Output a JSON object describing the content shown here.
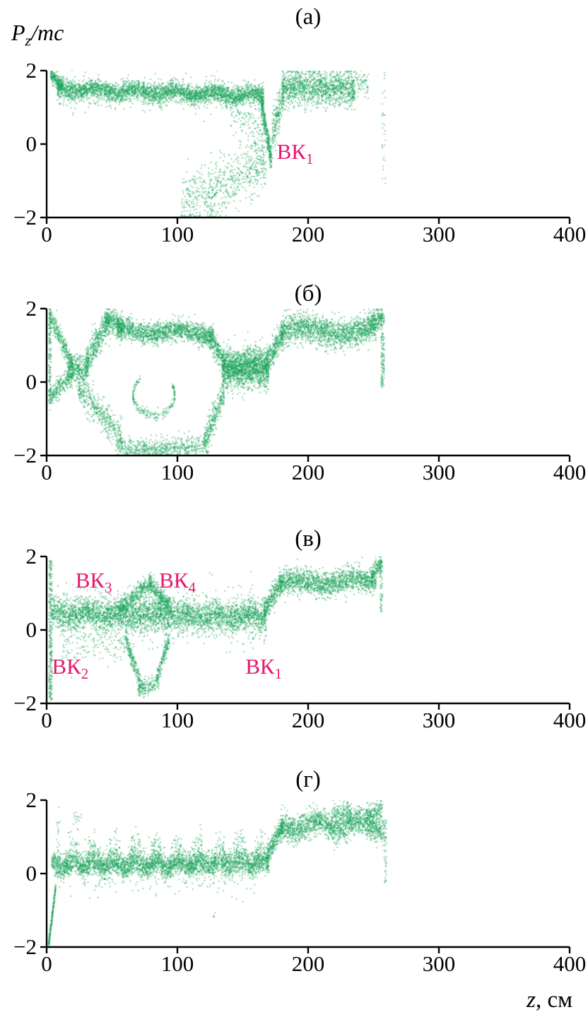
{
  "chart_data": {
    "type": "scatter",
    "ylabel": "Pz/mc",
    "ylabel_parts": {
      "base": "P",
      "sub": "z",
      "rest": "/mc"
    },
    "xlabel": "z, см",
    "xlabel_parts": {
      "base": "z",
      "rest": ", см"
    },
    "xlim": [
      0,
      400
    ],
    "ylim": [
      -2,
      2
    ],
    "xticks": [
      {
        "v": 0,
        "label": "0"
      },
      {
        "v": 100,
        "label": "100"
      },
      {
        "v": 200,
        "label": "200"
      },
      {
        "v": 300,
        "label": "300"
      },
      {
        "v": 400,
        "label": "400"
      }
    ],
    "yticks": [
      {
        "v": 2,
        "label": "2"
      },
      {
        "v": 0,
        "label": "0"
      },
      {
        "v": -2,
        "label": "−2"
      }
    ],
    "point_color": "#17a258",
    "annotation_color": "#e8186e",
    "axis_color": "#000000",
    "panels": [
      {
        "title": "(а)",
        "annotations": [
          {
            "base": "ВК",
            "sub": "1",
            "x": 176,
            "y": -0.3
          }
        ],
        "series": [
          {
            "t": "band",
            "x0": 3,
            "x1": 12,
            "y0": 1.9,
            "y1": 1.55,
            "s": 0.1,
            "n": 200
          },
          {
            "t": "band",
            "x0": 8,
            "x1": 166,
            "y0": 1.5,
            "y1": 1.32,
            "s": 0.12,
            "n": 2800,
            "w": 0.06,
            "p": 30
          },
          {
            "t": "band",
            "x0": 8,
            "x1": 166,
            "y0": 1.45,
            "y1": 1.3,
            "s": 0.22,
            "n": 700,
            "w": 0.06,
            "p": 30
          },
          {
            "t": "band",
            "x0": 140,
            "x1": 167,
            "y0": 0.9,
            "y1": 0.2,
            "s": 0.3,
            "n": 120
          },
          {
            "t": "band",
            "x0": 164,
            "x1": 172,
            "y0": 1.15,
            "y1": -0.45,
            "s": 0.18,
            "n": 350
          },
          {
            "t": "band",
            "x0": 103,
            "x1": 168,
            "y0": -1.75,
            "y1": -0.45,
            "s": 0.4,
            "n": 650,
            "ymin": -2,
            "ymax": 0.1
          },
          {
            "t": "band",
            "x0": 172,
            "x1": 182,
            "y0": 0.2,
            "y1": 1.5,
            "s": 0.25,
            "n": 220
          },
          {
            "t": "band",
            "x0": 180,
            "x1": 236,
            "y0": 1.55,
            "y1": 1.5,
            "s": 0.24,
            "n": 1300,
            "ymax": 2
          },
          {
            "t": "band",
            "x0": 236,
            "x1": 246,
            "y0": 1.6,
            "y1": 1.7,
            "s": 0.18,
            "n": 60
          },
          {
            "t": "vline",
            "x": 258,
            "y0": -1.3,
            "y1": 1.95,
            "n": 30,
            "j": 3
          }
        ]
      },
      {
        "title": "(б)",
        "annotations": [],
        "series": [
          {
            "t": "vline",
            "x": 2.5,
            "y0": -0.6,
            "y1": 2,
            "n": 150,
            "j": 2
          },
          {
            "t": "band",
            "x0": 2,
            "x1": 20,
            "y0": 1.85,
            "y1": 0.45,
            "s": 0.14,
            "n": 300
          },
          {
            "t": "band",
            "x0": 2,
            "x1": 20,
            "y0": -0.45,
            "y1": 0.25,
            "s": 0.14,
            "n": 250
          },
          {
            "t": "band",
            "x0": 16,
            "x1": 32,
            "y0": 0.3,
            "y1": 0.45,
            "s": 0.22,
            "n": 350
          },
          {
            "t": "band",
            "x0": 30,
            "x1": 48,
            "y0": 0.5,
            "y1": 1.7,
            "s": 0.2,
            "n": 400
          },
          {
            "t": "band",
            "x0": 44,
            "x1": 58,
            "y0": 1.75,
            "y1": 1.5,
            "s": 0.18,
            "n": 300,
            "ymax": 2
          },
          {
            "t": "band",
            "x0": 54,
            "x1": 128,
            "y0": 1.4,
            "y1": 1.32,
            "s": 0.14,
            "n": 1500,
            "w": 0.08,
            "p": 45
          },
          {
            "t": "band",
            "x0": 124,
            "x1": 137,
            "y0": 1.25,
            "y1": 0.5,
            "s": 0.16,
            "n": 280
          },
          {
            "t": "band",
            "x0": 24,
            "x1": 58,
            "y0": -0.1,
            "y1": -1.6,
            "s": 0.22,
            "n": 450
          },
          {
            "t": "band",
            "x0": 54,
            "x1": 124,
            "y0": -1.8,
            "y1": -1.78,
            "s": 0.14,
            "n": 600,
            "ymin": -2
          },
          {
            "t": "band",
            "x0": 120,
            "x1": 136,
            "y0": -1.65,
            "y1": -0.3,
            "s": 0.18,
            "n": 300
          },
          {
            "t": "arc",
            "cx": 82,
            "cy": -0.35,
            "rx": 16,
            "ry": 0.55,
            "a0": -230,
            "a1": 30,
            "s": 0.06,
            "n": 220
          },
          {
            "t": "band",
            "x0": 134,
            "x1": 170,
            "y0": 0.35,
            "y1": 0.38,
            "s": 0.26,
            "n": 1700
          },
          {
            "t": "band",
            "x0": 168,
            "x1": 181,
            "y0": 0.5,
            "y1": 1.35,
            "s": 0.18,
            "n": 320
          },
          {
            "t": "band",
            "x0": 179,
            "x1": 252,
            "y0": 1.38,
            "y1": 1.42,
            "s": 0.2,
            "n": 1600,
            "w": 0.1,
            "p": 60,
            "ymax": 2
          },
          {
            "t": "band",
            "x0": 248,
            "x1": 257,
            "y0": 1.55,
            "y1": 1.85,
            "s": 0.14,
            "n": 160
          },
          {
            "t": "vline",
            "x": 257,
            "y0": -0.15,
            "y1": 1.9,
            "n": 140,
            "j": 2.5
          }
        ]
      },
      {
        "title": "(в)",
        "annotations": [
          {
            "base": "ВК",
            "sub": "3",
            "x": 22,
            "y": 1.25
          },
          {
            "base": "ВК",
            "sub": "4",
            "x": 86,
            "y": 1.25
          },
          {
            "base": "ВК",
            "sub": "2",
            "x": 4,
            "y": -1.1
          },
          {
            "base": "ВК",
            "sub": "1",
            "x": 152,
            "y": -1.1
          }
        ],
        "series": [
          {
            "t": "vline",
            "x": 3,
            "y0": -1.95,
            "y1": 1.9,
            "n": 280,
            "j": 2.5
          },
          {
            "t": "band",
            "x0": 4,
            "x1": 168,
            "y0": 0.45,
            "y1": 0.35,
            "s": 0.2,
            "n": 3300,
            "w": 0.05,
            "p": 25
          },
          {
            "t": "band",
            "x0": 4,
            "x1": 168,
            "y0": 0.4,
            "y1": 0.35,
            "s": 0.38,
            "n": 700
          },
          {
            "t": "band",
            "x0": 12,
            "x1": 60,
            "y0": -0.35,
            "y1": -0.3,
            "s": 0.3,
            "n": 140,
            "ymax": 0.1
          },
          {
            "t": "band",
            "x0": 56,
            "x1": 80,
            "y0": 0.6,
            "y1": 1.28,
            "s": 0.13,
            "n": 380
          },
          {
            "t": "band",
            "x0": 78,
            "x1": 96,
            "y0": 1.28,
            "y1": 0.55,
            "s": 0.13,
            "n": 330
          },
          {
            "t": "band",
            "x0": 60,
            "x1": 72,
            "y0": -0.2,
            "y1": -1.5,
            "s": 0.14,
            "n": 220
          },
          {
            "t": "band",
            "x0": 70,
            "x1": 86,
            "y0": -1.6,
            "y1": -1.45,
            "s": 0.12,
            "n": 160
          },
          {
            "t": "band",
            "x0": 84,
            "x1": 94,
            "y0": -1.35,
            "y1": -0.2,
            "s": 0.13,
            "n": 170
          },
          {
            "t": "band",
            "x0": 166,
            "x1": 180,
            "y0": 0.5,
            "y1": 1.3,
            "s": 0.16,
            "n": 320
          },
          {
            "t": "band",
            "x0": 178,
            "x1": 252,
            "y0": 1.28,
            "y1": 1.33,
            "s": 0.17,
            "n": 1500,
            "w": 0.07,
            "p": 45
          },
          {
            "t": "band",
            "x0": 248,
            "x1": 256,
            "y0": 1.45,
            "y1": 1.85,
            "s": 0.13,
            "n": 140
          },
          {
            "t": "vline",
            "x": 256,
            "y0": 0.5,
            "y1": 1.9,
            "n": 60,
            "j": 2
          }
        ]
      },
      {
        "title": "(г)",
        "annotations": [],
        "series": [
          {
            "t": "band",
            "x0": 1.5,
            "x1": 7,
            "y0": -1.95,
            "y1": -0.35,
            "s": 0.07,
            "n": 220
          },
          {
            "t": "vline",
            "x": 9,
            "y0": 0.3,
            "y1": 1.9,
            "n": 18,
            "j": 3
          },
          {
            "t": "band",
            "x0": 20,
            "x1": 27,
            "y0": 1.45,
            "y1": 1.55,
            "s": 0.12,
            "n": 16
          },
          {
            "t": "band",
            "x0": 4,
            "x1": 170,
            "y0": 0.22,
            "y1": 0.28,
            "s": 0.16,
            "n": 3200,
            "w": 0.07,
            "p": 16
          },
          {
            "t": "band",
            "x0": 12,
            "x1": 168,
            "y0": 0.45,
            "y1": 0.5,
            "s": 0.22,
            "n": 900,
            "w": 0.28,
            "p": 16,
            "ymin": 0
          },
          {
            "t": "band",
            "x0": 18,
            "x1": 162,
            "y0": -0.25,
            "y1": -0.2,
            "s": 0.22,
            "n": 110,
            "ymax": 0.05
          },
          {
            "t": "vline",
            "x": 128,
            "y0": -1.2,
            "y1": -1.05,
            "n": 4,
            "j": 1.5
          },
          {
            "t": "band",
            "x0": 168,
            "x1": 181,
            "y0": 0.45,
            "y1": 1.3,
            "s": 0.15,
            "n": 300
          },
          {
            "t": "band",
            "x0": 179,
            "x1": 258,
            "y0": 1.3,
            "y1": 1.32,
            "s": 0.18,
            "n": 1600,
            "w": 0.12,
            "p": 33,
            "ymax": 2
          },
          {
            "t": "band",
            "x0": 218,
            "x1": 233,
            "y0": 1.62,
            "y1": 1.68,
            "s": 0.15,
            "n": 160
          },
          {
            "t": "band",
            "x0": 244,
            "x1": 257,
            "y0": 1.6,
            "y1": 1.72,
            "s": 0.14,
            "n": 160
          },
          {
            "t": "vline",
            "x": 259,
            "y0": -0.25,
            "y1": 1.6,
            "n": 50,
            "j": 2
          }
        ]
      }
    ]
  }
}
